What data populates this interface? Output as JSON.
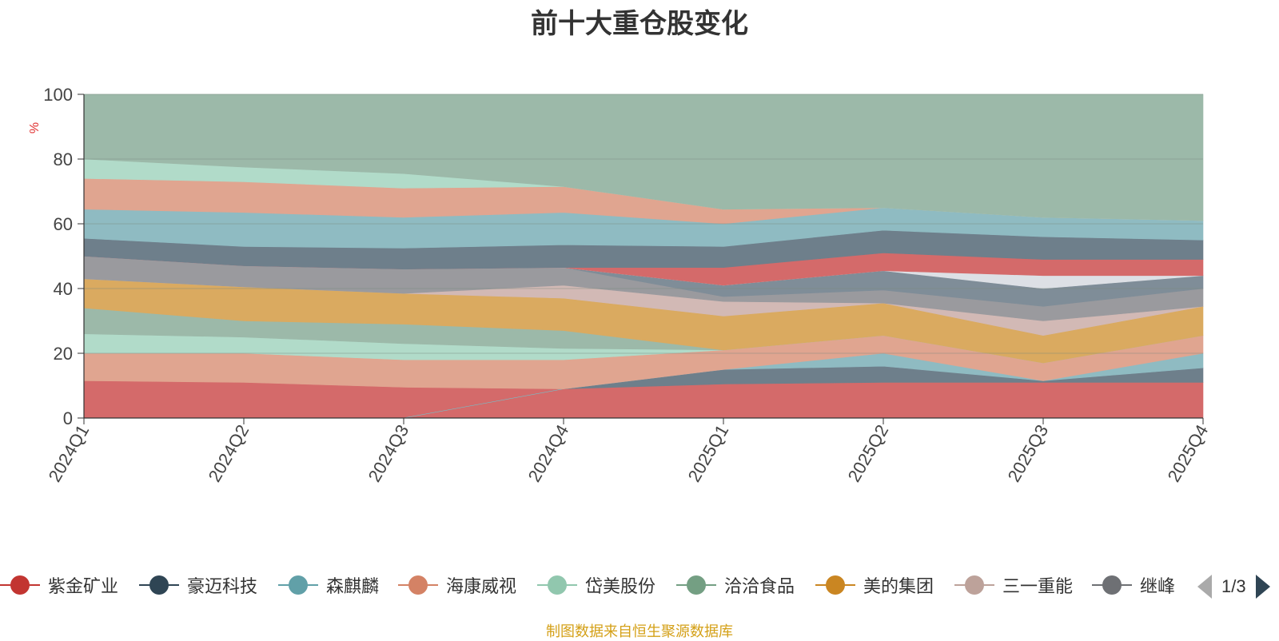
{
  "chart_data": {
    "type": "area",
    "title": "前十大重仓股变化",
    "ylabel": "%",
    "ylim": [
      0,
      100
    ],
    "yticks": [
      0,
      20,
      40,
      60,
      80,
      100
    ],
    "categories": [
      "2024Q1",
      "2024Q2",
      "2024Q3",
      "2024Q4",
      "2025Q1",
      "2025Q2",
      "2025Q3",
      "2025Q4"
    ],
    "bands": [
      {
        "lower": [
          0,
          0,
          0,
          0,
          0,
          0,
          0,
          0
        ],
        "upper": [
          11.5,
          11,
          9.5,
          9,
          10.5,
          11,
          11,
          11
        ],
        "color": "#d46a6a"
      },
      {
        "lower": [
          0,
          0,
          0,
          9,
          10.5,
          11,
          11,
          11
        ],
        "upper": [
          0,
          0,
          0,
          9,
          15,
          16,
          11.5,
          15.5
        ],
        "color": "#6e7f8b"
      },
      {
        "lower": [
          0,
          0,
          0,
          9,
          15,
          16,
          11.5,
          15.5
        ],
        "upper": [
          0,
          0,
          0,
          9,
          15,
          20,
          11.5,
          20
        ],
        "color": "#8fbbc2"
      },
      {
        "lower": [
          11.5,
          11,
          9.5,
          9,
          15,
          20,
          11.5,
          20
        ],
        "upper": [
          20,
          20,
          18,
          18,
          21,
          25.5,
          17,
          25.5
        ],
        "color": "#e0a590"
      },
      {
        "lower": [
          20,
          20,
          18,
          18,
          21,
          25.5,
          17,
          25.5
        ],
        "upper": [
          26,
          25,
          23,
          21.5,
          21,
          25.5,
          17,
          25.5
        ],
        "color": "#b1dbc9"
      },
      {
        "lower": [
          26,
          25,
          23,
          21.5,
          21,
          25.5,
          17,
          25.5
        ],
        "upper": [
          34,
          30,
          29,
          27,
          21,
          25.5,
          17,
          25.5
        ],
        "color": "#9cb9a9"
      },
      {
        "lower": [
          34,
          30,
          29,
          27,
          21,
          25.5,
          17,
          25.5
        ],
        "upper": [
          43,
          40.5,
          38.5,
          37,
          31.5,
          35.5,
          25.5,
          34.5
        ],
        "color": "#daaa60"
      },
      {
        "lower": [
          43,
          40.5,
          38.5,
          37,
          31.5,
          35.5,
          25.5,
          34.5
        ],
        "upper": [
          43,
          40.5,
          38.5,
          41,
          36,
          35.5,
          30,
          34.5
        ],
        "color": "#d2b9b5"
      },
      {
        "lower": [
          43,
          40.5,
          38.5,
          41,
          36,
          35.5,
          30,
          34.5
        ],
        "upper": [
          50,
          47,
          46,
          46.5,
          37.5,
          39.5,
          34.5,
          40
        ],
        "color": "#9a9a9e"
      },
      {
        "lower": [
          50,
          47,
          46,
          46.5,
          37.5,
          39.5,
          34.5,
          40
        ],
        "upper": [
          50,
          47,
          46,
          46.5,
          41,
          45.5,
          40,
          44
        ],
        "color": "#7f8d98"
      },
      {
        "lower": [
          50,
          47,
          46,
          46.5,
          41,
          45.5,
          40,
          44
        ],
        "upper": [
          50,
          47,
          46,
          46.5,
          41,
          45.5,
          44,
          44
        ],
        "color": "#dde0e5"
      },
      {
        "lower": [
          50,
          47,
          46,
          46.5,
          41,
          45.5,
          44,
          44
        ],
        "upper": [
          50,
          47,
          46,
          46.5,
          46.5,
          51,
          49,
          49
        ],
        "color": "#d46a6a"
      },
      {
        "lower": [
          50,
          47,
          46,
          46.5,
          46.5,
          51,
          49,
          49
        ],
        "upper": [
          55.5,
          53,
          52.5,
          53.5,
          53,
          58,
          56,
          55
        ],
        "color": "#6e7f8b"
      },
      {
        "lower": [
          55.5,
          53,
          52.5,
          53.5,
          53,
          58,
          56,
          55
        ],
        "upper": [
          64.5,
          63.5,
          62,
          63.5,
          60,
          65,
          62,
          61
        ],
        "color": "#8fbbc2"
      },
      {
        "lower": [
          64.5,
          63.5,
          62,
          63.5,
          60,
          65,
          62,
          61
        ],
        "upper": [
          74,
          73,
          71,
          71.5,
          64.5,
          65,
          62,
          61
        ],
        "color": "#e0a590"
      },
      {
        "lower": [
          74,
          73,
          71,
          71.5,
          64.5,
          65,
          62,
          61
        ],
        "upper": [
          80,
          77.5,
          75.5,
          71.5,
          64.5,
          65,
          62,
          61
        ],
        "color": "#b1dbc9"
      },
      {
        "lower": [
          80,
          77.5,
          75.5,
          71.5,
          64.5,
          65,
          62,
          61
        ],
        "upper": [
          100,
          100,
          100,
          100,
          100,
          100,
          100,
          100
        ],
        "color": "#9cb9a9"
      }
    ],
    "legend": [
      {
        "name": "紫金矿业",
        "color": "#c23531"
      },
      {
        "name": "豪迈科技",
        "color": "#2f4554"
      },
      {
        "name": "森麒麟",
        "color": "#61a0a8"
      },
      {
        "name": "海康威视",
        "color": "#d48265"
      },
      {
        "name": "岱美股份",
        "color": "#91c7ae"
      },
      {
        "name": "洽洽食品",
        "color": "#749f83"
      },
      {
        "name": "美的集团",
        "color": "#ca8622"
      },
      {
        "name": "三一重能",
        "color": "#bda29a"
      },
      {
        "name": "继峰",
        "color": "#6e7074"
      }
    ],
    "legend_page": "1/3",
    "source": "制图数据来自恒生聚源数据库"
  }
}
